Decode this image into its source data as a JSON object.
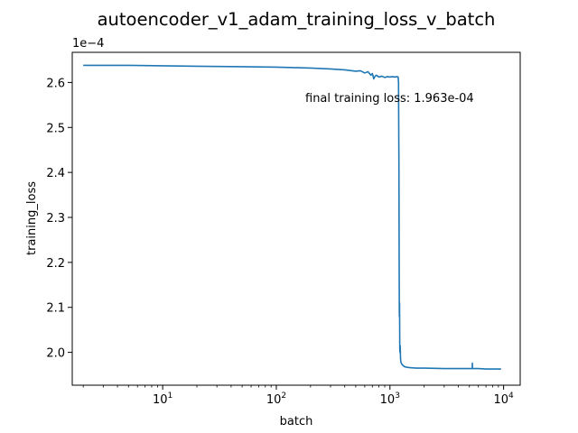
{
  "chart_data": {
    "type": "line",
    "title": "autoencoder_v1_adam_training_loss_v_batch",
    "xlabel": "batch",
    "ylabel": "training_loss",
    "x_scale": "log",
    "y_offset_label": "1e−4",
    "xlim": [
      1.6,
      14000
    ],
    "ylim": [
      1.927,
      2.667
    ],
    "x_ticks": [
      {
        "value": 10,
        "base": "10",
        "exp": "1"
      },
      {
        "value": 100,
        "base": "10",
        "exp": "2"
      },
      {
        "value": 1000,
        "base": "10",
        "exp": "3"
      },
      {
        "value": 10000,
        "base": "10",
        "exp": "4"
      }
    ],
    "y_ticks": [
      {
        "value": 2.0,
        "label": "2.0"
      },
      {
        "value": 2.1,
        "label": "2.1"
      },
      {
        "value": 2.2,
        "label": "2.2"
      },
      {
        "value": 2.3,
        "label": "2.3"
      },
      {
        "value": 2.4,
        "label": "2.4"
      },
      {
        "value": 2.5,
        "label": "2.5"
      },
      {
        "value": 2.6,
        "label": "2.6"
      }
    ],
    "grid": false,
    "annotation": {
      "text": "final training loss: 1.963e-04",
      "x": 165,
      "y": 2.563
    },
    "line_color": "#1f77b4",
    "series": [
      {
        "x": [
          2,
          5,
          10,
          20,
          50,
          100,
          200,
          300,
          400,
          500,
          550,
          600,
          640,
          660,
          680,
          700,
          720,
          740,
          760,
          800,
          850,
          900,
          950,
          1000,
          1050,
          1100,
          1150,
          1180,
          1190,
          1200,
          1205,
          1210,
          1215,
          1220,
          1225,
          1230,
          1240,
          1250,
          1270,
          1300,
          1350,
          1400,
          1500,
          1700,
          2000,
          3000,
          4000,
          5000,
          5300,
          5310,
          5320,
          5330,
          5400,
          6000,
          7000,
          8000,
          9500
        ],
        "y": [
          2.638,
          2.638,
          2.637,
          2.636,
          2.635,
          2.634,
          2.632,
          2.63,
          2.628,
          2.625,
          2.626,
          2.621,
          2.624,
          2.62,
          2.616,
          2.62,
          2.608,
          2.614,
          2.616,
          2.612,
          2.614,
          2.611,
          2.613,
          2.612,
          2.613,
          2.612,
          2.613,
          2.612,
          2.6,
          2.4,
          2.2,
          2.08,
          2.11,
          2.01,
          2.0,
          2.015,
          1.985,
          1.978,
          1.974,
          1.971,
          1.968,
          1.967,
          1.966,
          1.965,
          1.965,
          1.964,
          1.964,
          1.964,
          1.964,
          1.976,
          1.966,
          1.964,
          1.964,
          1.964,
          1.963,
          1.963,
          1.963
        ]
      }
    ]
  }
}
